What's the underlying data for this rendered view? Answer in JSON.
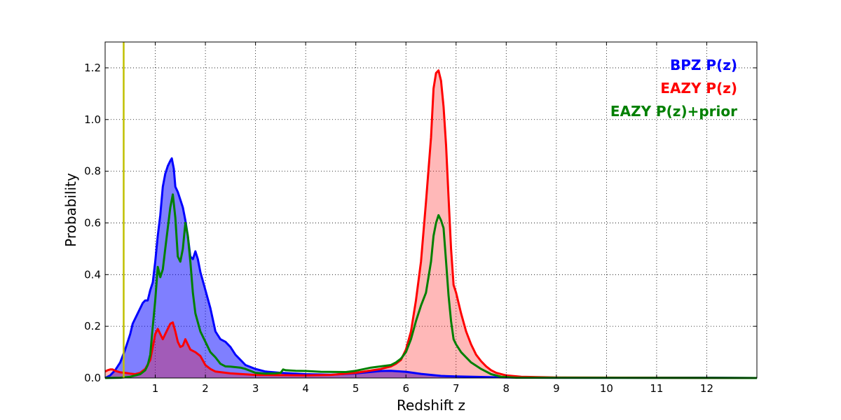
{
  "chart_data": {
    "type": "area",
    "xlabel": "Redshift z",
    "ylabel": "Probability",
    "xlim": [
      0,
      13
    ],
    "ylim": [
      0,
      1.3
    ],
    "x_ticks": [
      1,
      2,
      3,
      4,
      5,
      6,
      7,
      8,
      9,
      10,
      11,
      12
    ],
    "y_ticks": [
      0.0,
      0.2,
      0.4,
      0.6,
      0.8,
      1.0,
      1.2
    ],
    "x_tick_labels": [
      "1",
      "2",
      "3",
      "4",
      "5",
      "6",
      "7",
      "8",
      "9",
      "10",
      "11",
      "12"
    ],
    "y_tick_labels": [
      "0.0",
      "0.2",
      "0.4",
      "0.6",
      "0.8",
      "1.0",
      "1.2"
    ],
    "grid": true,
    "legend_position": "top-right",
    "vline": {
      "x": 0.37,
      "color": "#c0c000"
    },
    "series": [
      {
        "name": "BPZ P(z)",
        "color": "#0000ff",
        "fill_color": "#0000ff",
        "fill_opacity": 0.5,
        "points": [
          [
            0.0,
            0.0
          ],
          [
            0.1,
            0.01
          ],
          [
            0.2,
            0.03
          ],
          [
            0.3,
            0.06
          ],
          [
            0.4,
            0.11
          ],
          [
            0.5,
            0.17
          ],
          [
            0.55,
            0.21
          ],
          [
            0.65,
            0.25
          ],
          [
            0.75,
            0.29
          ],
          [
            0.8,
            0.3
          ],
          [
            0.85,
            0.3
          ],
          [
            0.9,
            0.34
          ],
          [
            0.95,
            0.37
          ],
          [
            1.0,
            0.45
          ],
          [
            1.05,
            0.55
          ],
          [
            1.1,
            0.63
          ],
          [
            1.15,
            0.74
          ],
          [
            1.2,
            0.79
          ],
          [
            1.25,
            0.82
          ],
          [
            1.3,
            0.84
          ],
          [
            1.33,
            0.85
          ],
          [
            1.37,
            0.81
          ],
          [
            1.4,
            0.74
          ],
          [
            1.45,
            0.72
          ],
          [
            1.5,
            0.69
          ],
          [
            1.55,
            0.66
          ],
          [
            1.6,
            0.61
          ],
          [
            1.65,
            0.55
          ],
          [
            1.7,
            0.47
          ],
          [
            1.75,
            0.46
          ],
          [
            1.8,
            0.49
          ],
          [
            1.85,
            0.46
          ],
          [
            1.9,
            0.41
          ],
          [
            2.0,
            0.34
          ],
          [
            2.1,
            0.27
          ],
          [
            2.2,
            0.18
          ],
          [
            2.3,
            0.15
          ],
          [
            2.4,
            0.14
          ],
          [
            2.5,
            0.12
          ],
          [
            2.6,
            0.09
          ],
          [
            2.7,
            0.07
          ],
          [
            2.8,
            0.05
          ],
          [
            3.0,
            0.035
          ],
          [
            3.2,
            0.025
          ],
          [
            3.5,
            0.02
          ],
          [
            4.0,
            0.015
          ],
          [
            4.5,
            0.013
          ],
          [
            5.0,
            0.018
          ],
          [
            5.5,
            0.027
          ],
          [
            5.7,
            0.028
          ],
          [
            6.0,
            0.024
          ],
          [
            6.3,
            0.016
          ],
          [
            6.7,
            0.008
          ],
          [
            7.0,
            0.006
          ],
          [
            7.5,
            0.004
          ],
          [
            8.0,
            0.002
          ],
          [
            9.0,
            0.001
          ],
          [
            12.0,
            0.001
          ],
          [
            13.0,
            0.0
          ]
        ]
      },
      {
        "name": "EAZY P(z)",
        "color": "#ff0000",
        "fill_color": "#ff0000",
        "fill_opacity": 0.28,
        "points": [
          [
            0.0,
            0.025
          ],
          [
            0.05,
            0.03
          ],
          [
            0.1,
            0.033
          ],
          [
            0.15,
            0.033
          ],
          [
            0.2,
            0.028
          ],
          [
            0.3,
            0.022
          ],
          [
            0.4,
            0.02
          ],
          [
            0.5,
            0.017
          ],
          [
            0.6,
            0.015
          ],
          [
            0.7,
            0.02
          ],
          [
            0.8,
            0.035
          ],
          [
            0.9,
            0.07
          ],
          [
            0.95,
            0.12
          ],
          [
            1.0,
            0.17
          ],
          [
            1.05,
            0.19
          ],
          [
            1.1,
            0.17
          ],
          [
            1.15,
            0.15
          ],
          [
            1.2,
            0.17
          ],
          [
            1.25,
            0.19
          ],
          [
            1.3,
            0.21
          ],
          [
            1.35,
            0.215
          ],
          [
            1.4,
            0.18
          ],
          [
            1.45,
            0.14
          ],
          [
            1.5,
            0.12
          ],
          [
            1.55,
            0.125
          ],
          [
            1.6,
            0.15
          ],
          [
            1.65,
            0.13
          ],
          [
            1.7,
            0.11
          ],
          [
            1.8,
            0.1
          ],
          [
            1.9,
            0.085
          ],
          [
            2.0,
            0.05
          ],
          [
            2.1,
            0.035
          ],
          [
            2.2,
            0.025
          ],
          [
            2.5,
            0.018
          ],
          [
            3.0,
            0.012
          ],
          [
            4.0,
            0.01
          ],
          [
            4.5,
            0.012
          ],
          [
            5.0,
            0.02
          ],
          [
            5.5,
            0.035
          ],
          [
            5.7,
            0.045
          ],
          [
            5.8,
            0.055
          ],
          [
            5.9,
            0.07
          ],
          [
            6.0,
            0.11
          ],
          [
            6.1,
            0.18
          ],
          [
            6.2,
            0.3
          ],
          [
            6.3,
            0.45
          ],
          [
            6.4,
            0.68
          ],
          [
            6.5,
            0.93
          ],
          [
            6.55,
            1.12
          ],
          [
            6.6,
            1.18
          ],
          [
            6.65,
            1.19
          ],
          [
            6.7,
            1.15
          ],
          [
            6.75,
            1.05
          ],
          [
            6.8,
            0.9
          ],
          [
            6.85,
            0.7
          ],
          [
            6.9,
            0.5
          ],
          [
            6.95,
            0.36
          ],
          [
            7.0,
            0.33
          ],
          [
            7.1,
            0.25
          ],
          [
            7.2,
            0.18
          ],
          [
            7.3,
            0.13
          ],
          [
            7.4,
            0.09
          ],
          [
            7.5,
            0.065
          ],
          [
            7.6,
            0.045
          ],
          [
            7.7,
            0.03
          ],
          [
            7.8,
            0.02
          ],
          [
            8.0,
            0.01
          ],
          [
            8.3,
            0.005
          ],
          [
            9.0,
            0.002
          ],
          [
            13.0,
            0.0
          ]
        ]
      },
      {
        "name": "EAZY P(z)+prior",
        "color": "#008000",
        "fill_color": "#008000",
        "fill_opacity": 0.0,
        "points": [
          [
            0.0,
            0.0
          ],
          [
            0.3,
            0.001
          ],
          [
            0.5,
            0.005
          ],
          [
            0.7,
            0.015
          ],
          [
            0.8,
            0.03
          ],
          [
            0.85,
            0.05
          ],
          [
            0.9,
            0.09
          ],
          [
            0.95,
            0.2
          ],
          [
            1.0,
            0.3
          ],
          [
            1.05,
            0.43
          ],
          [
            1.1,
            0.39
          ],
          [
            1.15,
            0.42
          ],
          [
            1.2,
            0.5
          ],
          [
            1.25,
            0.58
          ],
          [
            1.3,
            0.66
          ],
          [
            1.35,
            0.71
          ],
          [
            1.4,
            0.62
          ],
          [
            1.45,
            0.47
          ],
          [
            1.5,
            0.45
          ],
          [
            1.55,
            0.5
          ],
          [
            1.6,
            0.6
          ],
          [
            1.65,
            0.55
          ],
          [
            1.7,
            0.45
          ],
          [
            1.75,
            0.33
          ],
          [
            1.8,
            0.25
          ],
          [
            1.9,
            0.18
          ],
          [
            2.0,
            0.14
          ],
          [
            2.1,
            0.1
          ],
          [
            2.2,
            0.08
          ],
          [
            2.3,
            0.055
          ],
          [
            2.4,
            0.045
          ],
          [
            2.5,
            0.044
          ],
          [
            2.7,
            0.04
          ],
          [
            2.8,
            0.035
          ],
          [
            3.0,
            0.02
          ],
          [
            3.2,
            0.017
          ],
          [
            3.4,
            0.018
          ],
          [
            3.5,
            0.02
          ],
          [
            3.55,
            0.033
          ],
          [
            3.6,
            0.03
          ],
          [
            3.8,
            0.028
          ],
          [
            4.0,
            0.027
          ],
          [
            4.3,
            0.024
          ],
          [
            4.8,
            0.023
          ],
          [
            5.0,
            0.028
          ],
          [
            5.3,
            0.04
          ],
          [
            5.5,
            0.045
          ],
          [
            5.7,
            0.05
          ],
          [
            5.8,
            0.06
          ],
          [
            5.9,
            0.075
          ],
          [
            6.0,
            0.1
          ],
          [
            6.1,
            0.15
          ],
          [
            6.2,
            0.22
          ],
          [
            6.3,
            0.28
          ],
          [
            6.4,
            0.33
          ],
          [
            6.5,
            0.45
          ],
          [
            6.55,
            0.55
          ],
          [
            6.6,
            0.6
          ],
          [
            6.65,
            0.63
          ],
          [
            6.7,
            0.61
          ],
          [
            6.75,
            0.58
          ],
          [
            6.8,
            0.45
          ],
          [
            6.85,
            0.32
          ],
          [
            6.9,
            0.22
          ],
          [
            6.95,
            0.15
          ],
          [
            7.0,
            0.13
          ],
          [
            7.1,
            0.1
          ],
          [
            7.3,
            0.06
          ],
          [
            7.5,
            0.035
          ],
          [
            7.7,
            0.015
          ],
          [
            7.9,
            0.005
          ],
          [
            8.2,
            0.001
          ],
          [
            13.0,
            0.0
          ]
        ]
      }
    ]
  }
}
